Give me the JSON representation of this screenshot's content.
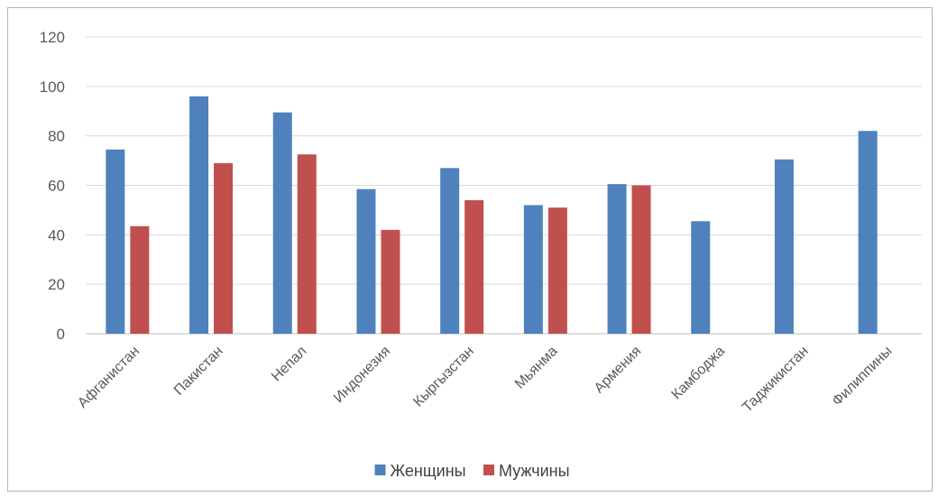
{
  "chart_data": {
    "type": "bar",
    "categories": [
      "Афганистан",
      "Пакистан",
      "Непал",
      "Индонезия",
      "Кыргызстан",
      "Мьянма",
      "Армения",
      "Камбоджа",
      "Таджикистан",
      "Филиппины"
    ],
    "series": [
      {
        "name": "Женщины",
        "color": "#4f81bd",
        "values": [
          74.5,
          96,
          89.5,
          58.5,
          67,
          52,
          60.5,
          45.5,
          70.5,
          82
        ]
      },
      {
        "name": "Мужчины",
        "color": "#c0504d",
        "values": [
          43.5,
          69,
          72.5,
          42,
          54,
          51,
          60,
          null,
          null,
          null
        ]
      }
    ],
    "yticks": [
      "0",
      "20",
      "40",
      "60",
      "80",
      "100",
      "120"
    ],
    "ylim": [
      0,
      120
    ],
    "grid": true,
    "legend_position": "bottom"
  }
}
